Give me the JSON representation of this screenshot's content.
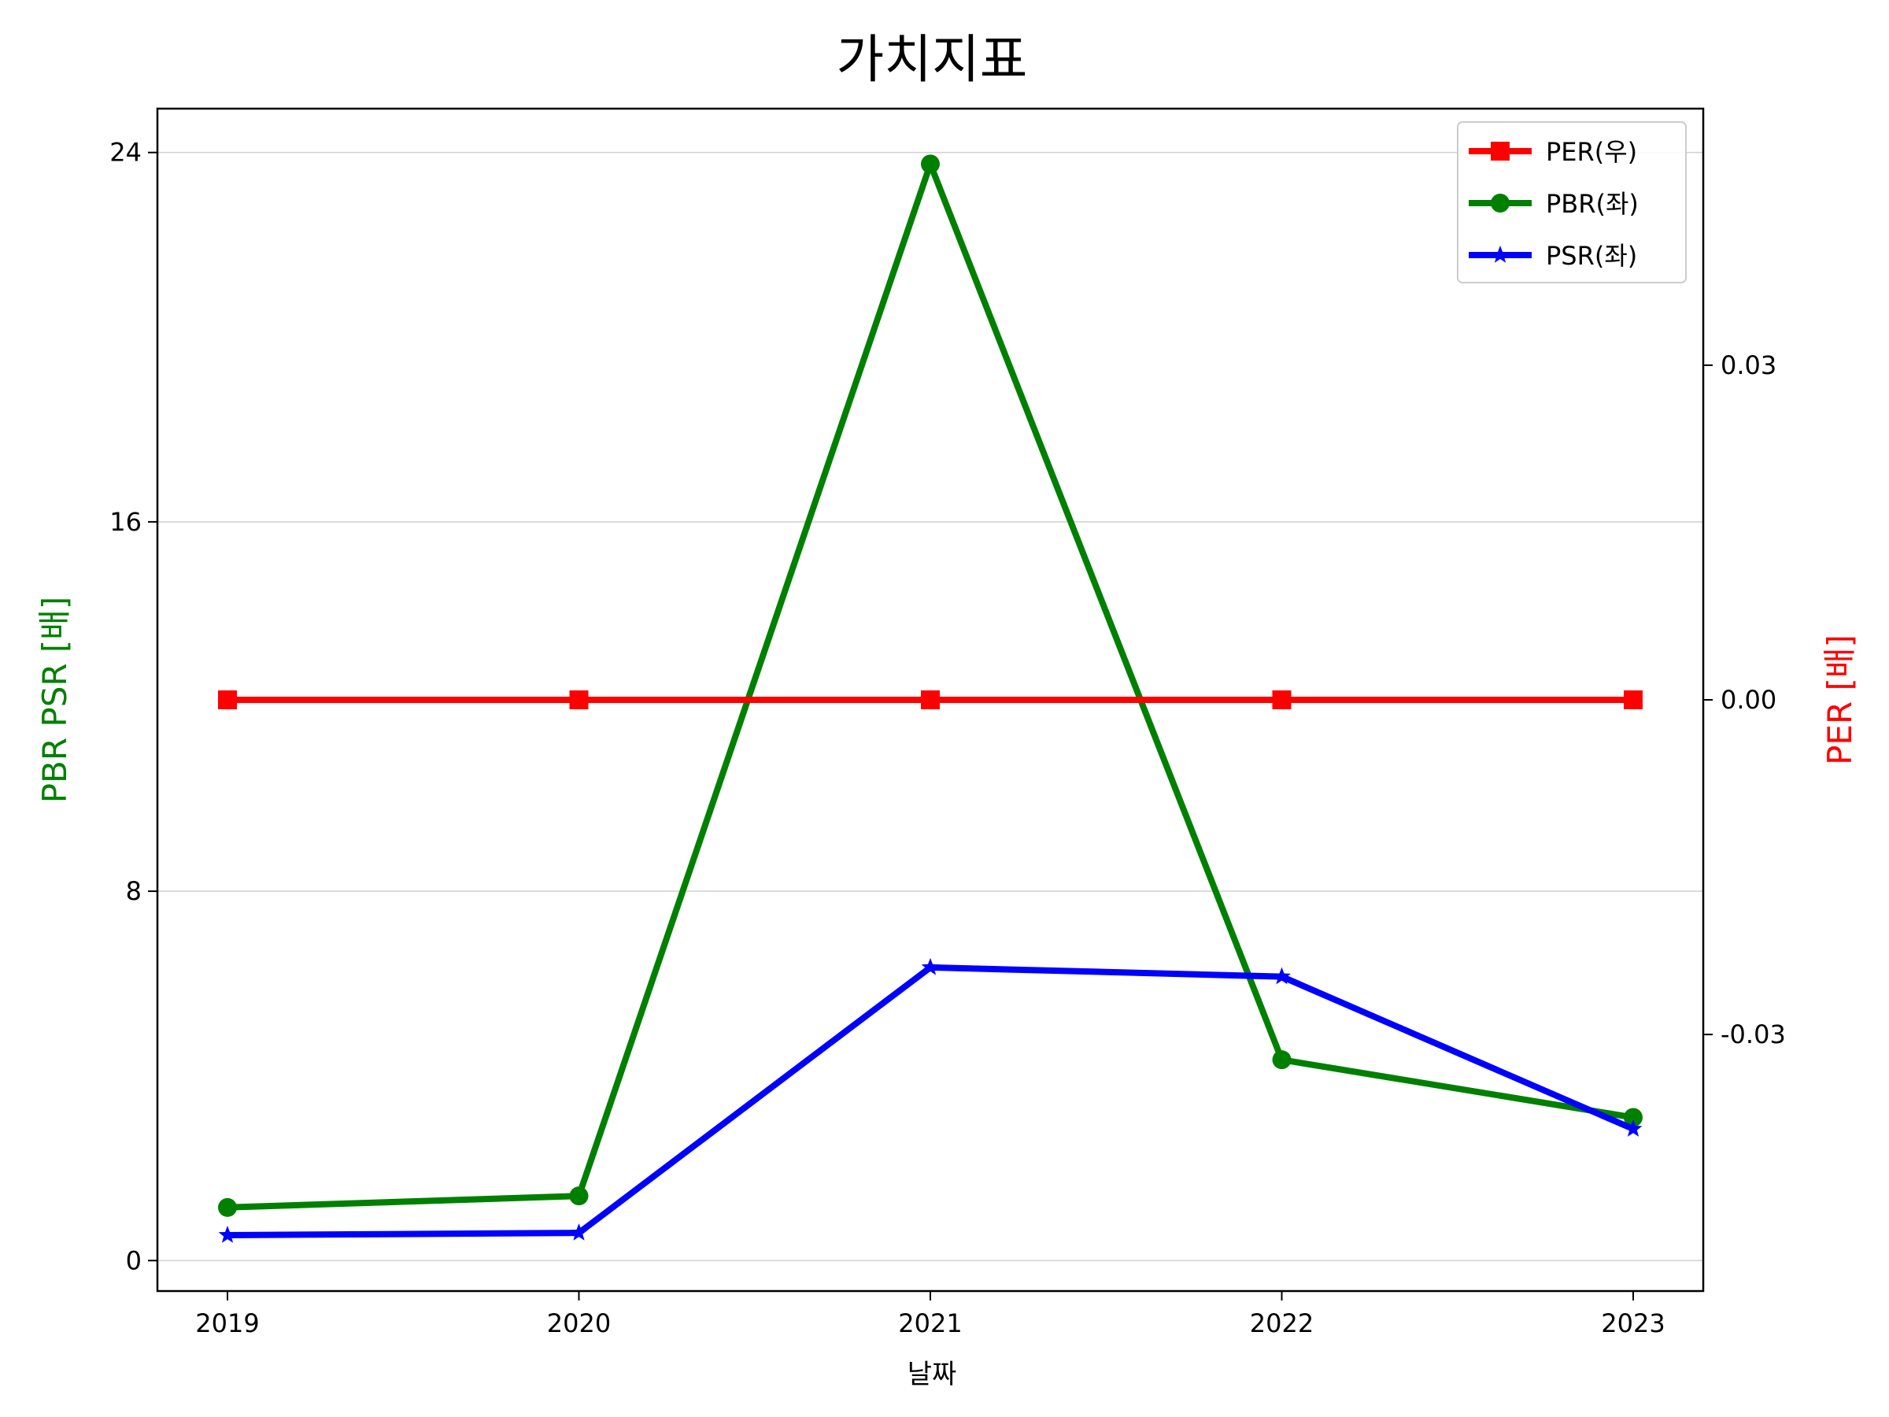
{
  "chart_data": {
    "type": "line",
    "title": "가치지표",
    "xlabel": "날짜",
    "ylabel_left": "PBR PSR [배]",
    "ylabel_right": "PER [배]",
    "x": [
      "2019",
      "2020",
      "2021",
      "2022",
      "2023"
    ],
    "ylim_left": [
      -0.66,
      24.95
    ],
    "yticks_left": [
      "0",
      "8",
      "16",
      "24"
    ],
    "ylim_right": [
      -0.053,
      0.053
    ],
    "yticks_right": [
      "0.03",
      "0.00",
      "-0.03"
    ],
    "ytick_values_right": [
      0.03,
      0.0,
      -0.03
    ],
    "grid": "horizontal",
    "legend_position": "top-right",
    "series": [
      {
        "name": "PER(우)",
        "axis": "right",
        "marker": "square",
        "color": "#ff0000",
        "values": [
          0,
          0,
          0,
          0,
          0
        ]
      },
      {
        "name": "PBR(좌)",
        "axis": "left",
        "marker": "circle",
        "color": "#008000",
        "values": [
          1.15,
          1.4,
          23.75,
          4.35,
          3.1
        ]
      },
      {
        "name": "PSR(좌)",
        "axis": "left",
        "marker": "star",
        "color": "#0000ff",
        "values": [
          0.55,
          0.6,
          6.35,
          6.15,
          2.85
        ]
      }
    ],
    "colors": {
      "left_axis_label": "#008000",
      "right_axis_label": "#ff0000"
    }
  }
}
